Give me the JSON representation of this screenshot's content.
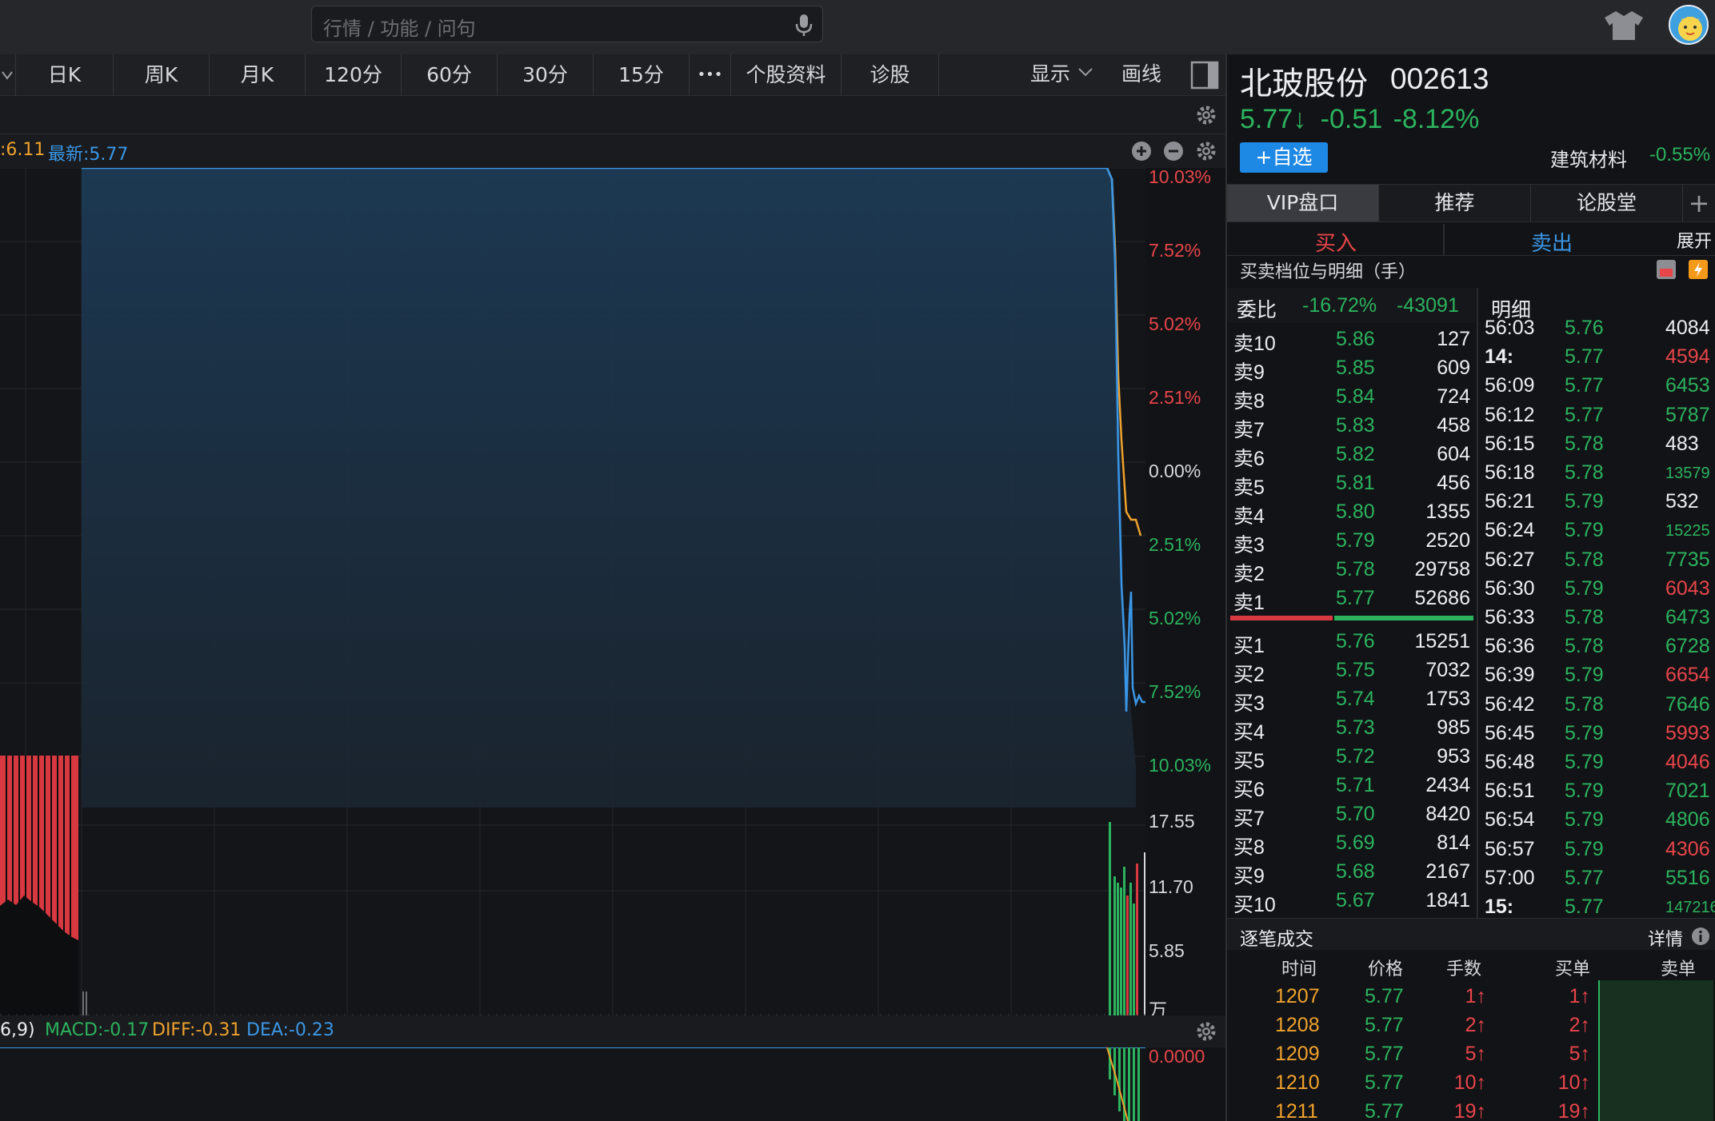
{
  "search": {
    "placeholder": "行情 / 功能 / 问句"
  },
  "toolbar": {
    "periods": [
      "日K",
      "周K",
      "月K",
      "120分",
      "60分",
      "30分",
      "15分"
    ],
    "more_label": "•••",
    "profile_label": "个股资料",
    "diagnose_label": "诊股",
    "display_label": "显示",
    "draw_label": "画线"
  },
  "chart_header": {
    "prev_close_fragment": ":6.11",
    "latest_label": "最新:5.77"
  },
  "price_axis": {
    "labels": [
      "10.03%",
      "7.52%",
      "5.02%",
      "2.51%",
      "0.00%",
      "2.51%",
      "5.02%",
      "7.52%",
      "10.03%"
    ],
    "colors": [
      "#e8454a",
      "#e8454a",
      "#e8454a",
      "#e8454a",
      "#d7d8db",
      "#2bb35e",
      "#2bb35e",
      "#2bb35e",
      "#2bb35e"
    ]
  },
  "volume_axis": {
    "labels": [
      "17.55",
      "11.70",
      "5.85",
      "万"
    ]
  },
  "macd": {
    "param_fragment": "6,9)",
    "macd_label": "MACD:-0.17",
    "diff_label": "DIFF:-0.31",
    "dea_label": "DEA:-0.23",
    "axis_top": "0.0000"
  },
  "stock": {
    "name": "北玻股份",
    "code": "002613",
    "price": "5.77",
    "arrow": "↓",
    "change": "-0.51",
    "change_pct": "-8.12%"
  },
  "watch_button": "+自选",
  "sector": {
    "name": "建筑材料",
    "change": "-0.55%"
  },
  "tabs": [
    "VIP盘口",
    "推荐",
    "论股堂"
  ],
  "tab_add": "+",
  "buy_label": "买入",
  "sell_label": "卖出",
  "expand_label": "展开",
  "orderbook": {
    "title": "买卖档位与明细（手）",
    "ratio_label": "委比",
    "ratio_pct": "-16.72%",
    "ratio_diff": "-43091",
    "asks": [
      {
        "label": "卖10",
        "price": "5.86",
        "vol": "127"
      },
      {
        "label": "卖9",
        "price": "5.85",
        "vol": "609"
      },
      {
        "label": "卖8",
        "price": "5.84",
        "vol": "724"
      },
      {
        "label": "卖7",
        "price": "5.83",
        "vol": "458"
      },
      {
        "label": "卖6",
        "price": "5.82",
        "vol": "604"
      },
      {
        "label": "卖5",
        "price": "5.81",
        "vol": "456"
      },
      {
        "label": "卖4",
        "price": "5.80",
        "vol": "1355"
      },
      {
        "label": "卖3",
        "price": "5.79",
        "vol": "2520"
      },
      {
        "label": "卖2",
        "price": "5.78",
        "vol": "29758"
      },
      {
        "label": "卖1",
        "price": "5.77",
        "vol": "52686"
      }
    ],
    "bids": [
      {
        "label": "买1",
        "price": "5.76",
        "vol": "15251"
      },
      {
        "label": "买2",
        "price": "5.75",
        "vol": "7032"
      },
      {
        "label": "买3",
        "price": "5.74",
        "vol": "1753"
      },
      {
        "label": "买4",
        "price": "5.73",
        "vol": "985"
      },
      {
        "label": "买5",
        "price": "5.72",
        "vol": "953"
      },
      {
        "label": "买6",
        "price": "5.71",
        "vol": "2434"
      },
      {
        "label": "买7",
        "price": "5.70",
        "vol": "8420"
      },
      {
        "label": "买8",
        "price": "5.69",
        "vol": "814"
      },
      {
        "label": "买9",
        "price": "5.68",
        "vol": "2167"
      },
      {
        "label": "买10",
        "price": "5.67",
        "vol": "1841"
      }
    ]
  },
  "detail": {
    "title": "明细",
    "rows": [
      {
        "time": "56:03",
        "price": "5.76",
        "vol": "4084",
        "color": "#eceef1"
      },
      {
        "time": "14:",
        "price": "5.77",
        "vol": "4594",
        "color": "#e8454a"
      },
      {
        "time": "56:09",
        "price": "5.77",
        "vol": "6453",
        "color": "#2bb35e"
      },
      {
        "time": "56:12",
        "price": "5.77",
        "vol": "5787",
        "color": "#2bb35e"
      },
      {
        "time": "56:15",
        "price": "5.78",
        "vol": "483",
        "color": "#eceef1"
      },
      {
        "time": "56:18",
        "price": "5.78",
        "vol": "13579",
        "color": "#2bb35e"
      },
      {
        "time": "56:21",
        "price": "5.79",
        "vol": "532",
        "color": "#eceef1"
      },
      {
        "time": "56:24",
        "price": "5.79",
        "vol": "15225",
        "color": "#2bb35e"
      },
      {
        "time": "56:27",
        "price": "5.78",
        "vol": "7735",
        "color": "#2bb35e"
      },
      {
        "time": "56:30",
        "price": "5.79",
        "vol": "6043",
        "color": "#e8454a"
      },
      {
        "time": "56:33",
        "price": "5.78",
        "vol": "6473",
        "color": "#2bb35e"
      },
      {
        "time": "56:36",
        "price": "5.78",
        "vol": "6728",
        "color": "#2bb35e"
      },
      {
        "time": "56:39",
        "price": "5.79",
        "vol": "6654",
        "color": "#e8454a"
      },
      {
        "time": "56:42",
        "price": "5.78",
        "vol": "7646",
        "color": "#2bb35e"
      },
      {
        "time": "56:45",
        "price": "5.79",
        "vol": "5993",
        "color": "#e8454a"
      },
      {
        "time": "56:48",
        "price": "5.79",
        "vol": "4046",
        "color": "#e8454a"
      },
      {
        "time": "56:51",
        "price": "5.79",
        "vol": "7021",
        "color": "#2bb35e"
      },
      {
        "time": "56:54",
        "price": "5.79",
        "vol": "4806",
        "color": "#2bb35e"
      },
      {
        "time": "56:57",
        "price": "5.79",
        "vol": "4306",
        "color": "#e8454a"
      },
      {
        "time": "57:00",
        "price": "5.77",
        "vol": "5516",
        "color": "#2bb35e"
      },
      {
        "time": "15:",
        "price": "5.77",
        "vol": "147216",
        "color": "#2bb35e"
      }
    ]
  },
  "trades": {
    "title": "逐笔成交",
    "detail_label": "详情",
    "columns": [
      "时间",
      "价格",
      "手数",
      "买单",
      "卖单"
    ],
    "rows": [
      {
        "time": "1207",
        "price": "5.77",
        "vol": "1↑",
        "buy": "1↑"
      },
      {
        "time": "1208",
        "price": "5.77",
        "vol": "2↑",
        "buy": "2↑"
      },
      {
        "time": "1209",
        "price": "5.77",
        "vol": "5↑",
        "buy": "5↑"
      },
      {
        "time": "1210",
        "price": "5.77",
        "vol": "10↑",
        "buy": "10↑"
      },
      {
        "time": "1211",
        "price": "5.77",
        "vol": "19↑",
        "buy": "19↑"
      }
    ]
  },
  "colors": {
    "up": "#e8454a",
    "down": "#2bb35e",
    "price_line": "#3a96e6",
    "avg_line": "#f0a22c",
    "accent": "#1e88e5"
  }
}
